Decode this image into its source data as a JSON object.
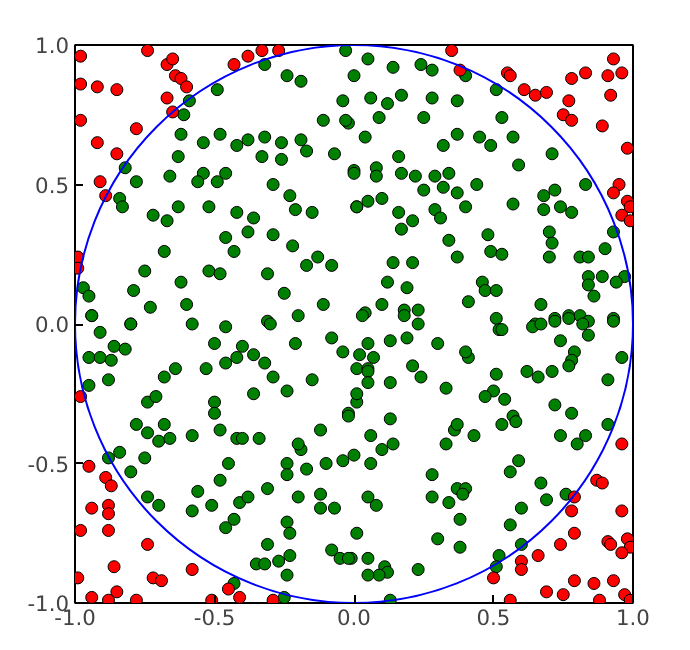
{
  "chart_data": {
    "type": "scatter",
    "marker": "circle",
    "grid": false,
    "xlim": [
      -1,
      1
    ],
    "ylim": [
      -1,
      1
    ],
    "xticks": [
      {
        "value": -1,
        "label": "-1.0"
      },
      {
        "value": -0.5,
        "label": "-0.5"
      },
      {
        "value": 0,
        "label": "0.0"
      },
      {
        "value": 0.5,
        "label": "0.5"
      },
      {
        "value": 1,
        "label": "1.0"
      }
    ],
    "yticks": [
      {
        "value": -1,
        "label": "-1.0"
      },
      {
        "value": -0.5,
        "label": "-0.5"
      },
      {
        "value": 0,
        "label": "0.0"
      },
      {
        "value": 0.5,
        "label": "0.5"
      },
      {
        "value": 1,
        "label": "1.0"
      }
    ],
    "series": [
      {
        "color": "#008000",
        "x": [
          -0.59,
          -0.61,
          -0.49,
          -0.32,
          -0.24,
          -0.19,
          -0.82,
          -0.78,
          -0.84,
          -0.83,
          -0.62,
          -0.63,
          -0.66,
          -0.63,
          -0.72,
          -0.67,
          -0.68,
          -0.75,
          -0.79,
          -0.62,
          -0.6,
          -0.73,
          -0.97,
          -0.95,
          -0.94,
          -0.8,
          -0.54,
          -0.48,
          -0.42,
          -0.38,
          -0.32,
          -0.26,
          -0.19,
          -0.33,
          -0.26,
          -0.17,
          -0.54,
          -0.49,
          -0.46,
          -0.56,
          -0.52,
          -0.42,
          -0.29,
          -0.23,
          -0.21,
          -0.15,
          -0.36,
          -0.38,
          -0.46,
          -0.43,
          -0.29,
          -0.22,
          -0.13,
          -0.31,
          -0.25,
          -0.17,
          -0.08,
          -0.11,
          -0.02,
          -0.07,
          -0.04,
          0.0,
          -0.03,
          0.0,
          0.01,
          -0.52,
          -0.48,
          -0.58,
          -0.31,
          -0.2,
          -0.11,
          0.05,
          0.14,
          0.24,
          0.28,
          0.4,
          0.06,
          0.17,
          0.28,
          0.37,
          -0.03,
          0.12,
          0.09,
          0.25,
          0.04,
          0.37,
          0.45,
          0.51,
          0.53,
          0.57,
          0.49,
          0.32,
          0.71,
          0.59,
          0.16,
          0.17,
          0.0,
          0.08,
          0.08,
          0.22,
          0.29,
          0.34,
          0.32,
          0.25,
          0.37,
          0.44,
          0.05,
          0.1,
          0.01,
          0.16,
          0.29,
          0.31,
          0.21,
          0.4,
          0.57,
          0.68,
          0.72,
          0.83,
          0.68,
          0.74,
          0.78,
          0.17,
          0.34,
          0.48,
          0.7,
          0.71,
          0.49,
          0.53,
          0.37,
          0.14,
          0.21,
          0.7,
          0.81,
          0.84,
          0.9,
          0.93,
          0.12,
          0.19,
          0.46,
          0.47,
          0.51,
          0.41,
          0.67,
          0.84,
          0.84,
          0.89,
          0.97,
          0.94,
          0.86,
          0.1,
          0.18,
          0.23,
          0.04,
          0.51,
          0.65,
          0.72,
          0.77,
          0.81,
          0.84,
          0.93,
          -0.94,
          -0.91,
          -0.8,
          -0.95,
          -0.91,
          -0.87,
          -0.86,
          -0.82,
          -0.88,
          -0.95,
          -0.74,
          -0.71,
          -0.68,
          -0.64,
          -0.78,
          -0.74,
          -0.68,
          -0.7,
          -0.66,
          -0.58,
          -0.88,
          -0.84,
          -0.75,
          -0.8,
          -0.74,
          -0.7,
          -0.56,
          -0.58,
          -0.51,
          -0.5,
          -0.53,
          -0.5,
          -0.5,
          -0.46,
          -0.42,
          -0.4,
          -0.36,
          -0.46,
          -0.3,
          -0.32,
          -0.29,
          -0.36,
          -0.48,
          -0.42,
          -0.4,
          -0.34,
          -0.45,
          -0.48,
          -0.41,
          -0.38,
          -0.46,
          -0.43,
          -0.31,
          -0.24,
          -0.21,
          -0.19,
          -0.2,
          -0.24,
          -0.24,
          -0.2,
          -0.24,
          -0.23,
          -0.31,
          -0.35,
          -0.32,
          -0.27,
          -0.23,
          -0.24,
          -0.25,
          -0.43,
          -0.17,
          -0.12,
          -0.12,
          -0.07,
          -0.08,
          -0.05,
          -0.01,
          -0.1,
          -0.04,
          -0.12,
          -0.02,
          0.01,
          -0.08,
          -0.04,
          0.01,
          -0.15,
          0.03,
          0.18,
          0.23,
          0.3,
          0.05,
          0.13,
          0.07,
          0.19,
          0.52,
          0.53,
          0.64,
          0.67,
          0.72,
          0.77,
          0.82,
          0.84,
          0.93,
          0.74,
          0.79,
          0.78,
          0.96,
          0.02,
          0.05,
          0.05,
          0.05,
          0.13,
          0.21,
          0.24,
          0.41,
          0.4,
          0.51,
          0.5,
          0.54,
          0.62,
          0.66,
          0.71,
          0.77,
          0.91,
          0.33,
          0.47,
          0.01,
          -0.02,
          0.13,
          0.53,
          0.57,
          0.58,
          0.72,
          0.78,
          0.83,
          0.91,
          0.74,
          0.8,
          0.36,
          0.37,
          0.43,
          0.33,
          0.06,
          0.1,
          0.14,
          0.0,
          0.06,
          0.59,
          0.56,
          0.28,
          0.67,
          0.37,
          0.4,
          0.39,
          0.28,
          0.34,
          0.05,
          0.08,
          0.6,
          0.69,
          0.76,
          0.38,
          0.56,
          0.3,
          0.01,
          0.6,
          -0.02,
          0.05,
          0.38,
          0.52,
          0.51,
          0.23,
          0.11,
          0.12,
          0.09,
          0.05,
          0.13
        ],
        "values": [
          0.8,
          0.75,
          0.84,
          0.93,
          0.89,
          0.87,
          0.56,
          0.51,
          0.45,
          0.42,
          0.68,
          0.6,
          0.53,
          0.42,
          0.39,
          0.37,
          0.26,
          0.19,
          0.12,
          0.15,
          0.07,
          0.06,
          0.13,
          0.1,
          0.03,
          0.0,
          0.65,
          0.68,
          0.64,
          0.66,
          0.67,
          0.65,
          0.66,
          0.6,
          0.59,
          0.62,
          0.54,
          0.51,
          0.54,
          0.51,
          0.42,
          0.4,
          0.5,
          0.46,
          0.41,
          0.4,
          0.38,
          0.33,
          0.31,
          0.26,
          0.32,
          0.28,
          0.24,
          0.18,
          0.11,
          0.21,
          0.21,
          0.73,
          0.72,
          0.61,
          0.8,
          0.89,
          0.98,
          0.55,
          0.42,
          0.19,
          0.18,
          0.0,
          0.01,
          0.03,
          0.07,
          0.95,
          0.92,
          0.93,
          0.91,
          0.89,
          0.81,
          0.82,
          0.81,
          0.8,
          0.73,
          0.79,
          0.74,
          0.74,
          0.67,
          0.68,
          0.67,
          0.84,
          0.74,
          0.67,
          0.64,
          0.64,
          0.61,
          0.57,
          0.6,
          0.54,
          0.54,
          0.56,
          0.53,
          0.53,
          0.53,
          0.54,
          0.49,
          0.48,
          0.47,
          0.5,
          0.44,
          0.45,
          0.42,
          0.4,
          0.41,
          0.38,
          0.37,
          0.42,
          0.43,
          0.46,
          0.48,
          0.5,
          0.41,
          0.42,
          0.4,
          0.34,
          0.3,
          0.32,
          0.33,
          0.29,
          0.26,
          0.25,
          0.24,
          0.22,
          0.22,
          0.24,
          0.24,
          0.24,
          0.27,
          0.33,
          0.15,
          0.13,
          0.15,
          0.12,
          0.12,
          0.08,
          0.07,
          0.17,
          0.14,
          0.17,
          0.17,
          0.15,
          0.1,
          0.07,
          0.05,
          0.05,
          0.04,
          0.02,
          0.0,
          0.02,
          0.03,
          0.03,
          0.01,
          0.02,
          0.03,
          -0.03,
          -0.0,
          -0.12,
          -0.12,
          -0.13,
          -0.08,
          -0.09,
          -0.2,
          -0.22,
          -0.28,
          -0.26,
          -0.19,
          -0.16,
          -0.36,
          -0.39,
          -0.36,
          -0.42,
          -0.41,
          -0.4,
          -0.48,
          -0.46,
          -0.48,
          -0.53,
          -0.62,
          -0.65,
          -0.6,
          -0.67,
          -0.65,
          -0.07,
          -0.16,
          -0.28,
          -0.32,
          -0.14,
          -0.12,
          -0.08,
          -0.11,
          -0.01,
          0.0,
          -0.14,
          -0.19,
          -0.25,
          -0.38,
          -0.41,
          -0.41,
          -0.41,
          -0.5,
          -0.56,
          -0.64,
          -0.62,
          -0.73,
          -0.7,
          -0.59,
          -0.24,
          -0.07,
          -0.45,
          -0.43,
          -0.5,
          -0.54,
          -0.62,
          -0.71,
          -0.75,
          -0.79,
          -0.86,
          -0.86,
          -0.85,
          -0.83,
          -0.9,
          -0.98,
          -0.93,
          -0.52,
          -0.61,
          -0.66,
          -0.66,
          -0.81,
          -0.84,
          -0.84,
          -0.5,
          -0.49,
          -0.38,
          -0.32,
          -0.28,
          -0.05,
          -0.1,
          -0.16,
          -0.2,
          0.03,
          0.03,
          -0.0,
          -0.07,
          -0.07,
          -0.06,
          -0.12,
          -0.05,
          -0.02,
          -0.02,
          -0.01,
          0.0,
          0.01,
          0.02,
          0.0,
          -0.04,
          0.01,
          -0.06,
          -0.1,
          -0.13,
          -0.12,
          -0.11,
          -0.16,
          -0.17,
          -0.21,
          -0.21,
          -0.15,
          -0.19,
          -0.12,
          -0.1,
          -0.18,
          -0.24,
          -0.27,
          -0.17,
          -0.19,
          -0.17,
          -0.15,
          -0.2,
          -0.23,
          -0.26,
          -0.25,
          -0.33,
          -0.34,
          -0.36,
          -0.33,
          -0.35,
          -0.29,
          -0.32,
          -0.4,
          -0.36,
          -0.4,
          -0.43,
          -0.38,
          -0.36,
          -0.4,
          -0.43,
          -0.4,
          -0.45,
          -0.43,
          -0.47,
          -0.5,
          -0.49,
          -0.53,
          -0.54,
          -0.57,
          -0.59,
          -0.59,
          -0.61,
          -0.62,
          -0.64,
          -0.62,
          -0.65,
          -0.66,
          -0.63,
          -0.61,
          -0.7,
          -0.72,
          -0.77,
          -0.75,
          -0.79,
          -0.84,
          -0.84,
          -0.8,
          -0.83,
          -0.87,
          -0.88,
          -0.87,
          -0.89,
          -0.9,
          -0.9,
          -0.99
        ]
      },
      {
        "color": "#ff0000",
        "x": [
          -0.98,
          -0.98,
          -0.92,
          -0.85,
          -0.98,
          -0.92,
          -0.85,
          -0.91,
          -0.89,
          -0.74,
          -0.67,
          -0.65,
          -0.64,
          -0.62,
          -0.6,
          -0.67,
          -0.65,
          -0.78,
          -0.43,
          -0.38,
          -0.33,
          -0.27,
          -0.99,
          -0.99,
          0.35,
          0.38,
          0.55,
          0.56,
          0.61,
          0.65,
          0.69,
          0.78,
          0.83,
          0.91,
          0.93,
          0.96,
          0.92,
          0.77,
          0.75,
          0.78,
          0.89,
          0.98,
          0.95,
          0.93,
          0.98,
          0.99,
          0.96,
          0.99,
          -0.98,
          -0.95,
          -0.89,
          -0.87,
          -0.94,
          -0.88,
          -0.88,
          -0.98,
          -0.88,
          -0.74,
          -0.86,
          -0.72,
          -0.69,
          -0.99,
          -0.85,
          -0.94,
          -0.88,
          -0.78,
          -0.58,
          -0.51,
          -0.45,
          -0.41,
          -0.29,
          0.96,
          0.87,
          0.89,
          0.79,
          0.78,
          0.96,
          0.79,
          0.74,
          0.66,
          0.6,
          0.6,
          0.5,
          0.91,
          0.92,
          0.98,
          0.99,
          0.96,
          0.79,
          0.86,
          0.93,
          0.69,
          0.75,
          0.88,
          0.97,
          0.99,
          0.56
        ],
        "values": [
          0.96,
          0.86,
          0.85,
          0.84,
          0.73,
          0.65,
          0.61,
          0.51,
          0.46,
          0.98,
          0.93,
          0.95,
          0.89,
          0.88,
          0.85,
          0.81,
          0.76,
          0.7,
          0.93,
          0.96,
          0.98,
          0.98,
          0.24,
          0.2,
          0.98,
          0.91,
          0.9,
          0.89,
          0.84,
          0.82,
          0.83,
          0.88,
          0.9,
          0.89,
          0.95,
          0.9,
          0.82,
          0.8,
          0.75,
          0.73,
          0.71,
          0.63,
          0.5,
          0.47,
          0.44,
          0.42,
          0.39,
          0.37,
          -0.26,
          -0.51,
          -0.55,
          -0.58,
          -0.66,
          -0.65,
          -0.68,
          -0.74,
          -0.74,
          -0.79,
          -0.87,
          -0.91,
          -0.92,
          -0.91,
          -0.96,
          -0.98,
          -0.99,
          -0.99,
          -0.88,
          -0.99,
          -0.95,
          -0.98,
          -0.99,
          -0.43,
          -0.56,
          -0.57,
          -0.62,
          -0.67,
          -0.67,
          -0.75,
          -0.79,
          -0.83,
          -0.85,
          -0.88,
          -0.91,
          -0.78,
          -0.79,
          -0.77,
          -0.8,
          -0.82,
          -0.92,
          -0.93,
          -0.92,
          -0.96,
          -0.97,
          -0.99,
          -0.97,
          -0.99,
          -0.99
        ]
      }
    ]
  }
}
